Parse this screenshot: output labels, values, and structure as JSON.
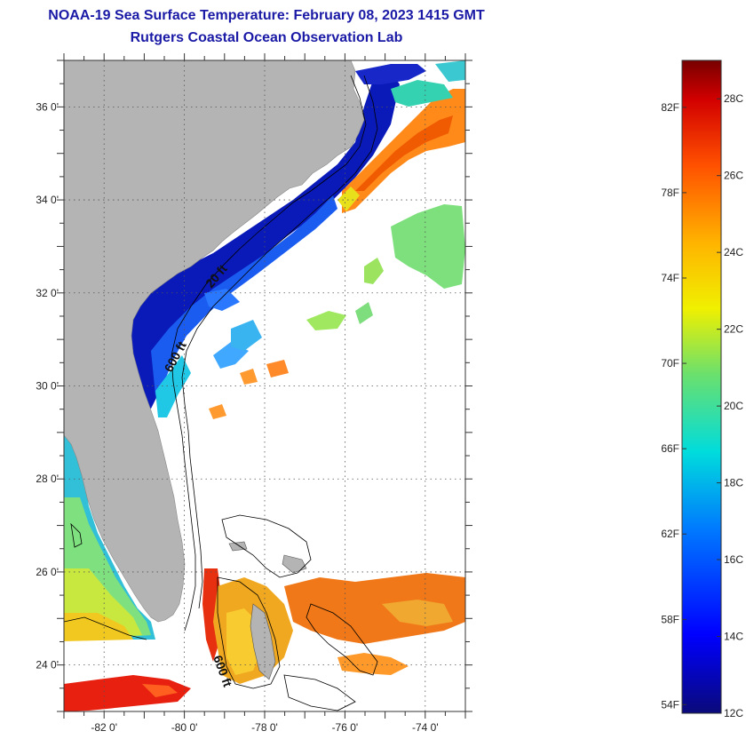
{
  "title": {
    "line1": "NOAA-19 Sea Surface Temperature:  February 08, 2023 1415 GMT",
    "line2": "Rutgers Coastal Ocean Observation Lab"
  },
  "map": {
    "lat_labels": [
      "36 0'",
      "34 0'",
      "32 0'",
      "30 0'",
      "28 0'",
      "26 0'",
      "24 0'"
    ],
    "lon_labels": [
      "-82 0'",
      "-80 0'",
      "-78 0'",
      "-76 0'",
      "-74 0'"
    ],
    "lat_values": [
      36,
      34,
      32,
      30,
      28,
      26,
      24
    ],
    "lon_values": [
      -82,
      -80,
      -78,
      -76,
      -74
    ],
    "lat_range": [
      23.0,
      37.0
    ],
    "lon_range": [
      -83.0,
      -73.0
    ],
    "contour_labels": [
      "20 ft",
      "600 ft",
      "600 ft"
    ],
    "land_color": "#b4b4b4"
  },
  "colorbar": {
    "fahrenheit_labels": [
      "82F",
      "78F",
      "74F",
      "70F",
      "66F",
      "62F",
      "58F",
      "54F"
    ],
    "celsius_labels": [
      "28C",
      "26C",
      "24C",
      "22C",
      "20C",
      "18C",
      "16C",
      "14C",
      "12C"
    ],
    "f_values": [
      82,
      78,
      74,
      70,
      66,
      62,
      58,
      54
    ],
    "c_values": [
      28,
      26,
      24,
      22,
      20,
      18,
      16,
      14,
      12
    ],
    "range_c": [
      12,
      29
    ]
  }
}
